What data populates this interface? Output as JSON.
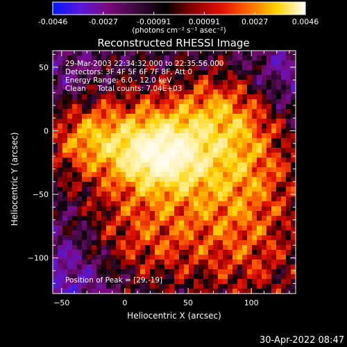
{
  "colorbar": {
    "tick_labels": [
      "-0.0046",
      "-0.0027",
      "-0.00091",
      "0.00091",
      "0.0027",
      "0.0046"
    ],
    "unit_label": "(photons cm⁻² s⁻¹ asec⁻²)",
    "colors": [
      "#0018ff",
      "#5a18d8",
      "#7a0a7a",
      "#3a0a3a",
      "#000000",
      "#8a0000",
      "#e01000",
      "#ff6a00",
      "#ffd400",
      "#ffffff"
    ]
  },
  "chart_data": {
    "type": "heatmap",
    "title": "Reconstructed RHESSI Image",
    "xlabel": "Heliocentric X (arcsec)",
    "ylabel": "Heliocentric Y (arcsec)",
    "xlim": [
      -57,
      135
    ],
    "ylim": [
      -128,
      63
    ],
    "xticks": [
      -50,
      0,
      50,
      100
    ],
    "yticks": [
      50,
      0,
      -50,
      -100
    ],
    "value_range": [
      -0.0046,
      0.0046
    ],
    "peak": {
      "x": 29,
      "y": -19
    },
    "annotations": {
      "time": "29-Mar-2003 22:34:32.000 to 22:35:56.000",
      "detectors": "Detectors: 3F 4F 5F 6F 7F 8F, Att 0",
      "energy": "Energy Range: 6.0 - 12.0 keV",
      "clean": "Clean     Total counts: 7.04E+03",
      "peak_label": "Position of Peak = [29,-19]"
    }
  },
  "footer": {
    "timestamp": "30-Apr-2022 08:47"
  }
}
